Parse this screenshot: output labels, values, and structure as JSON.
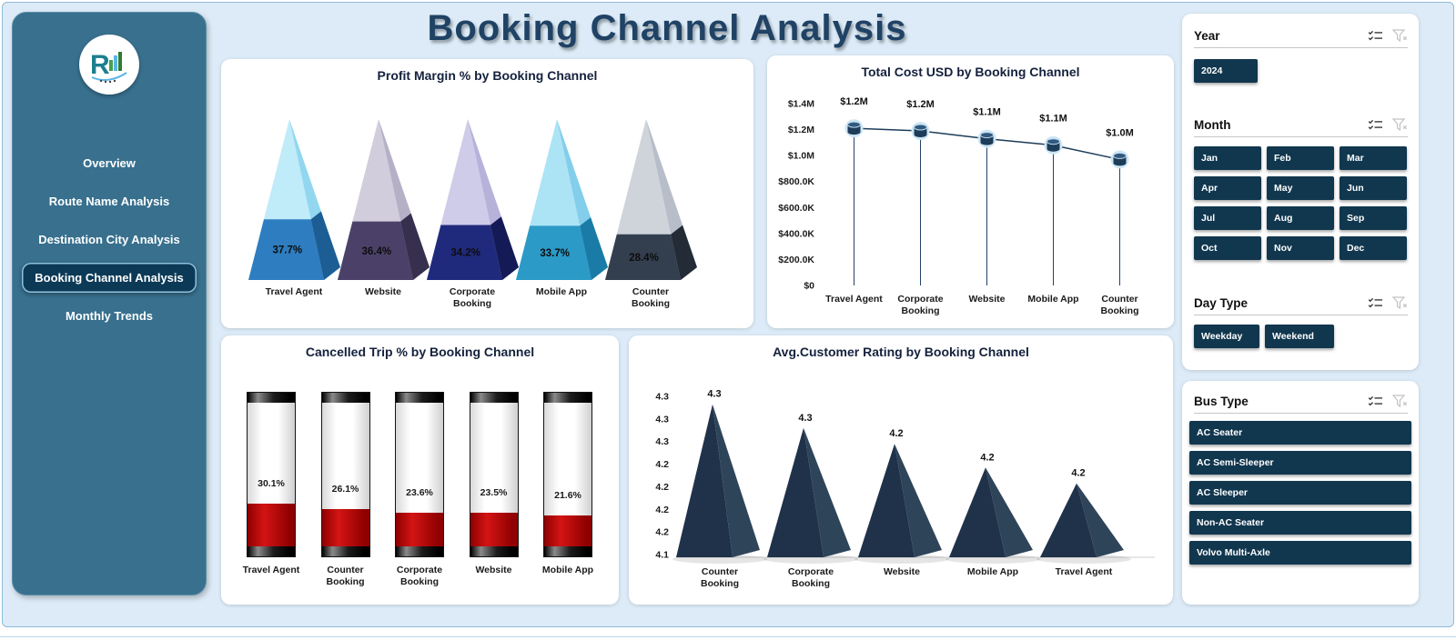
{
  "page": {
    "title": "Booking Channel Analysis"
  },
  "colors": {
    "canvas_bg": "#dcebf7",
    "sidebar_bg": "#38708e",
    "active_nav_bg": "#0c3a56",
    "slicer_button_bg": "#11374f",
    "title_color": "#1f4265",
    "line_color": "#1d3c59",
    "battery_red": "#c00000"
  },
  "icons": {
    "slicer_header": [
      "multi-select-icon",
      "clear-filter-icon"
    ]
  },
  "sidebar": {
    "items": [
      {
        "label": "Overview",
        "active": false
      },
      {
        "label": "Route Name Analysis",
        "active": false
      },
      {
        "label": "Destination City Analysis",
        "active": false
      },
      {
        "label": "Booking Channel Analysis",
        "active": true
      },
      {
        "label": "Monthly Trends",
        "active": false
      }
    ]
  },
  "slicers": {
    "year": {
      "label": "Year",
      "options": [
        "2024"
      ]
    },
    "month": {
      "label": "Month",
      "options": [
        "Jan",
        "Feb",
        "Mar",
        "Apr",
        "May",
        "Jun",
        "Jul",
        "Aug",
        "Sep",
        "Oct",
        "Nov",
        "Dec"
      ]
    },
    "day_type": {
      "label": "Day Type",
      "options": [
        "Weekday",
        "Weekend"
      ]
    },
    "bus_type": {
      "label": "Bus Type",
      "options": [
        "AC Seater",
        "AC Semi-Sleeper",
        "AC Sleeper",
        "Non-AC Seater",
        "Volvo Multi-Axle"
      ]
    }
  },
  "chart_data": [
    {
      "type": "pyramid",
      "title": "Profit Margin % by Booking Channel",
      "categories": [
        "Travel Agent",
        "Website",
        "Corporate Booking",
        "Mobile App",
        "Counter Booking"
      ],
      "values": [
        37.7,
        36.4,
        34.2,
        33.7,
        28.4
      ],
      "labels": [
        "37.7%",
        "36.4%",
        "34.2%",
        "33.7%",
        "28.4%"
      ],
      "colors": [
        {
          "front": "#2e7dc0",
          "side": "#1c5d94",
          "topFront": "#b5e7f7",
          "topSide": "#7fd0ec"
        },
        {
          "front": "#4b4168",
          "side": "#362f4d",
          "topFront": "#cac4d6",
          "topSide": "#a9a2bd"
        },
        {
          "front": "#202a7c",
          "side": "#141a56",
          "topFront": "#c7c3e6",
          "topSide": "#a9a4d4"
        },
        {
          "front": "#2b9ac7",
          "side": "#1a7ba6",
          "topFront": "#9edff5",
          "topSide": "#6cc6e8"
        },
        {
          "front": "#333f4e",
          "side": "#222b36",
          "topFront": "#c6ccd4",
          "topSide": "#aab3bf"
        }
      ]
    },
    {
      "type": "line",
      "title": "Total Cost USD by Booking Channel",
      "categories": [
        "Travel Agent",
        "Corporate Booking",
        "Website",
        "Mobile App",
        "Counter Booking"
      ],
      "values": [
        1210000,
        1190000,
        1130000,
        1080000,
        970000
      ],
      "labels": [
        "$1.2M",
        "$1.2M",
        "$1.1M",
        "$1.1M",
        "$1.0M"
      ],
      "y_ticks": [
        "$1.4M",
        "$1.2M",
        "$1.0M",
        "$800.0K",
        "$600.0K",
        "$400.0K",
        "$200.0K",
        "$0"
      ],
      "ylim": [
        0,
        1400000
      ]
    },
    {
      "type": "battery",
      "title": "Cancelled Trip % by Booking Channel",
      "categories": [
        "Travel Agent",
        "Counter Booking",
        "Corporate Booking",
        "Website",
        "Mobile App"
      ],
      "values": [
        30.1,
        26.1,
        23.6,
        23.5,
        21.6
      ],
      "labels": [
        "30.1%",
        "26.1%",
        "23.6%",
        "23.5%",
        "21.6%"
      ]
    },
    {
      "type": "pyramid",
      "title": "Avg.Customer Rating by Booking Channel",
      "categories": [
        "Counter Booking",
        "Corporate Booking",
        "Website",
        "Mobile App",
        "Travel Agent"
      ],
      "values": [
        4.29,
        4.26,
        4.24,
        4.21,
        4.19
      ],
      "labels": [
        "4.3",
        "4.3",
        "4.2",
        "4.2",
        "4.2"
      ],
      "y_ticks": [
        "4.3",
        "4.3",
        "4.3",
        "4.2",
        "4.2",
        "4.2",
        "4.2",
        "4.1"
      ],
      "ylim": [
        4.1,
        4.3
      ]
    }
  ]
}
